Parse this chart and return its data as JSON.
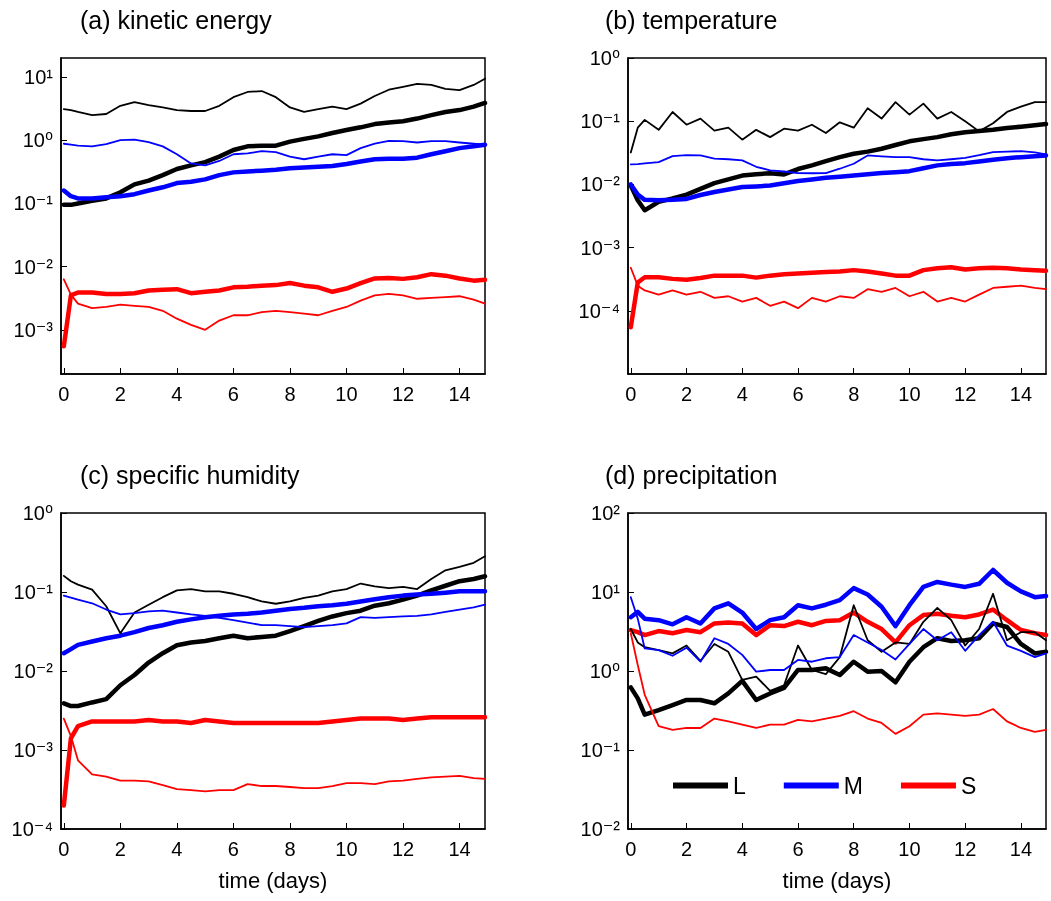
{
  "chart_data": [
    {
      "type": "line",
      "title": "(a) kinetic energy",
      "log": "y",
      "legend": false,
      "grid": false,
      "x": [
        0,
        0.25,
        0.5,
        1,
        1.5,
        2,
        2.5,
        3,
        3.5,
        4,
        4.5,
        5,
        5.5,
        6,
        6.5,
        7,
        7.5,
        8,
        8.5,
        9,
        9.5,
        10,
        10.5,
        11,
        11.5,
        12,
        12.5,
        13,
        13.5,
        14,
        14.5,
        14.9
      ],
      "xlim": [
        -0.1,
        14.9
      ],
      "xticks": [
        0,
        2,
        4,
        6,
        8,
        10,
        12,
        14
      ],
      "ylim": [
        0.0002,
        20
      ],
      "yticks": [
        {
          "value": 0.001,
          "label": "10⁻³"
        },
        {
          "value": 0.01,
          "label": "10⁻²"
        },
        {
          "value": 0.1,
          "label": "10⁻¹"
        },
        {
          "value": 1,
          "label": "10⁰"
        },
        {
          "value": 10,
          "label": "10¹"
        }
      ],
      "series": [
        {
          "color": "#000000",
          "values": [
            0.095,
            0.095,
            0.1,
            0.11,
            0.12,
            0.15,
            0.2,
            0.23,
            0.28,
            0.35,
            0.4,
            0.45,
            0.55,
            0.7,
            0.8,
            0.82,
            0.82,
            0.95,
            1.05,
            1.15,
            1.3,
            1.45,
            1.6,
            1.8,
            1.9,
            2.0,
            2.2,
            2.5,
            2.8,
            3.0,
            3.4,
            3.9
          ]
        },
        {
          "color": "#0000ff",
          "values": [
            0.16,
            0.13,
            0.12,
            0.12,
            0.125,
            0.13,
            0.14,
            0.16,
            0.18,
            0.21,
            0.22,
            0.24,
            0.28,
            0.31,
            0.32,
            0.33,
            0.34,
            0.36,
            0.37,
            0.38,
            0.39,
            0.42,
            0.46,
            0.5,
            0.51,
            0.51,
            0.53,
            0.6,
            0.67,
            0.75,
            0.8,
            0.85
          ]
        },
        {
          "color": "#ff0000",
          "values": [
            0.00055,
            0.0035,
            0.0039,
            0.0039,
            0.0037,
            0.0037,
            0.0038,
            0.0042,
            0.0043,
            0.0044,
            0.0038,
            0.004,
            0.0042,
            0.0047,
            0.0048,
            0.005,
            0.0051,
            0.0055,
            0.005,
            0.0047,
            0.004,
            0.0045,
            0.0055,
            0.0065,
            0.0066,
            0.0064,
            0.0068,
            0.0076,
            0.0072,
            0.0065,
            0.006,
            0.0062
          ]
        },
        {
          "color": "#000000",
          "values": [
            3.1,
            3.0,
            2.8,
            2.5,
            2.6,
            3.5,
            4.0,
            3.6,
            3.3,
            3.0,
            2.9,
            2.9,
            3.5,
            4.8,
            5.8,
            6.0,
            4.8,
            3.3,
            2.8,
            3.1,
            3.4,
            3.1,
            3.8,
            5.0,
            6.3,
            7.0,
            7.8,
            7.5,
            6.5,
            6.2,
            7.5,
            9.4
          ]
        },
        {
          "color": "#0000ff",
          "values": [
            0.88,
            0.85,
            0.82,
            0.8,
            0.87,
            1.0,
            1.02,
            0.93,
            0.8,
            0.6,
            0.43,
            0.4,
            0.47,
            0.6,
            0.62,
            0.67,
            0.65,
            0.55,
            0.5,
            0.55,
            0.6,
            0.58,
            0.75,
            0.88,
            0.98,
            0.97,
            0.92,
            0.97,
            0.97,
            0.92,
            0.88,
            0.85
          ]
        },
        {
          "color": "#ff0000",
          "values": [
            0.0063,
            0.0036,
            0.0026,
            0.0022,
            0.0023,
            0.0025,
            0.0024,
            0.0023,
            0.002,
            0.0015,
            0.0012,
            0.001,
            0.0014,
            0.0017,
            0.0017,
            0.0019,
            0.002,
            0.0019,
            0.0018,
            0.0017,
            0.002,
            0.0023,
            0.0029,
            0.0035,
            0.0037,
            0.0035,
            0.0031,
            0.0032,
            0.0033,
            0.0034,
            0.003,
            0.0026
          ]
        }
      ]
    },
    {
      "type": "line",
      "title": "(b) temperature",
      "log": "y",
      "legend": false,
      "grid": false,
      "x": [
        0,
        0.25,
        0.5,
        1,
        1.5,
        2,
        2.5,
        3,
        3.5,
        4,
        4.5,
        5,
        5.5,
        6,
        6.5,
        7,
        7.5,
        8,
        8.5,
        9,
        9.5,
        10,
        10.5,
        11,
        11.5,
        12,
        12.5,
        13,
        13.5,
        14,
        14.5,
        14.9
      ],
      "xlim": [
        -0.1,
        14.9
      ],
      "xticks": [
        0,
        2,
        4,
        6,
        8,
        10,
        12,
        14
      ],
      "ylim": [
        1e-05,
        1
      ],
      "yticks": [
        {
          "value": 0.0001,
          "label": "10⁻⁴"
        },
        {
          "value": 0.001,
          "label": "10⁻³"
        },
        {
          "value": 0.01,
          "label": "10⁻²"
        },
        {
          "value": 0.1,
          "label": "10⁻¹"
        },
        {
          "value": 1,
          "label": "10⁰"
        }
      ],
      "series": [
        {
          "color": "#000000",
          "values": [
            0.0096,
            0.0056,
            0.0039,
            0.0053,
            0.006,
            0.0069,
            0.0085,
            0.0105,
            0.012,
            0.0138,
            0.0145,
            0.015,
            0.0144,
            0.0175,
            0.02,
            0.0233,
            0.027,
            0.0305,
            0.033,
            0.0366,
            0.042,
            0.048,
            0.052,
            0.056,
            0.062,
            0.067,
            0.07,
            0.073,
            0.078,
            0.082,
            0.086,
            0.09
          ]
        },
        {
          "color": "#0000ff",
          "values": [
            0.01,
            0.0069,
            0.0057,
            0.0056,
            0.0057,
            0.0059,
            0.0068,
            0.0076,
            0.0083,
            0.0091,
            0.0093,
            0.0096,
            0.0104,
            0.0113,
            0.012,
            0.0127,
            0.0132,
            0.0138,
            0.0145,
            0.0151,
            0.0156,
            0.0162,
            0.018,
            0.02,
            0.021,
            0.0217,
            0.023,
            0.0245,
            0.026,
            0.027,
            0.028,
            0.0287
          ]
        },
        {
          "color": "#ff0000",
          "values": [
            5.5e-05,
            0.00028,
            0.00034,
            0.00034,
            0.00032,
            0.00031,
            0.00033,
            0.00036,
            0.00036,
            0.00036,
            0.000335,
            0.00036,
            0.00038,
            0.00039,
            0.0004,
            0.00041,
            0.00042,
            0.00044,
            0.00042,
            0.00039,
            0.00036,
            0.00036,
            0.00044,
            0.00047,
            0.00049,
            0.00045,
            0.00047,
            0.00048,
            0.00047,
            0.00045,
            0.00044,
            0.00043
          ]
        },
        {
          "color": "#000000",
          "values": [
            0.032,
            0.079,
            0.105,
            0.073,
            0.14,
            0.088,
            0.11,
            0.071,
            0.079,
            0.051,
            0.073,
            0.056,
            0.076,
            0.071,
            0.088,
            0.065,
            0.096,
            0.079,
            0.16,
            0.11,
            0.2,
            0.127,
            0.19,
            0.11,
            0.14,
            0.1,
            0.069,
            0.093,
            0.14,
            0.17,
            0.2,
            0.2
          ]
        },
        {
          "color": "#0000ff",
          "values": [
            0.0207,
            0.021,
            0.0215,
            0.0225,
            0.028,
            0.029,
            0.0287,
            0.0255,
            0.025,
            0.024,
            0.019,
            0.0167,
            0.016,
            0.0151,
            0.015,
            0.0151,
            0.0177,
            0.0212,
            0.0287,
            0.0277,
            0.027,
            0.027,
            0.025,
            0.024,
            0.025,
            0.0263,
            0.029,
            0.0324,
            0.033,
            0.0336,
            0.032,
            0.0298
          ]
        },
        {
          "color": "#ff0000",
          "values": [
            0.00048,
            0.00025,
            0.00021,
            0.00018,
            0.00021,
            0.00018,
            0.0002,
            0.00016,
            0.00017,
            0.00014,
            0.00016,
            0.00012,
            0.00014,
            0.00011,
            0.00016,
            0.00014,
            0.00017,
            0.00016,
            0.00022,
            0.0002,
            0.00023,
            0.00017,
            0.0002,
            0.00014,
            0.00016,
            0.00014,
            0.00018,
            0.00023,
            0.00024,
            0.00025,
            0.00023,
            0.00022
          ]
        }
      ]
    },
    {
      "type": "line",
      "title": "(c) specific humidity",
      "xlabel": "time (days)",
      "log": "y",
      "legend": false,
      "grid": false,
      "x": [
        0,
        0.25,
        0.5,
        1,
        1.5,
        2,
        2.5,
        3,
        3.5,
        4,
        4.5,
        5,
        5.5,
        6,
        6.5,
        7,
        7.5,
        8,
        8.5,
        9,
        9.5,
        10,
        10.5,
        11,
        11.5,
        12,
        12.5,
        13,
        13.5,
        14,
        14.5,
        14.9
      ],
      "xlim": [
        -0.1,
        14.9
      ],
      "xticks": [
        0,
        2,
        4,
        6,
        8,
        10,
        12,
        14
      ],
      "ylim": [
        0.0001,
        1
      ],
      "yticks": [
        {
          "value": 0.0001,
          "label": "10⁻⁴"
        },
        {
          "value": 0.001,
          "label": "10⁻³"
        },
        {
          "value": 0.01,
          "label": "10⁻²"
        },
        {
          "value": 0.1,
          "label": "10⁻¹"
        },
        {
          "value": 1,
          "label": "10⁰"
        }
      ],
      "series": [
        {
          "color": "#000000",
          "values": [
            0.0039,
            0.0036,
            0.0036,
            0.004,
            0.0044,
            0.0066,
            0.0089,
            0.0128,
            0.0168,
            0.0212,
            0.023,
            0.024,
            0.026,
            0.028,
            0.026,
            0.027,
            0.028,
            0.032,
            0.037,
            0.043,
            0.049,
            0.054,
            0.058,
            0.067,
            0.072,
            0.08,
            0.09,
            0.105,
            0.12,
            0.137,
            0.146,
            0.158
          ]
        },
        {
          "color": "#0000ff",
          "values": [
            0.0168,
            0.0189,
            0.0214,
            0.0236,
            0.026,
            0.028,
            0.031,
            0.035,
            0.038,
            0.042,
            0.045,
            0.048,
            0.05,
            0.052,
            0.053,
            0.055,
            0.058,
            0.061,
            0.063,
            0.066,
            0.068,
            0.071,
            0.076,
            0.081,
            0.086,
            0.09,
            0.093,
            0.095,
            0.098,
            0.102,
            0.102,
            0.102
          ]
        },
        {
          "color": "#ff0000",
          "values": [
            0.000198,
            0.0014,
            0.002,
            0.0023,
            0.0023,
            0.0023,
            0.0023,
            0.0024,
            0.0023,
            0.0023,
            0.0022,
            0.0024,
            0.0023,
            0.0022,
            0.0022,
            0.0022,
            0.0022,
            0.0022,
            0.0022,
            0.0022,
            0.0023,
            0.0024,
            0.0025,
            0.0025,
            0.0025,
            0.0024,
            0.0025,
            0.0026,
            0.0026,
            0.0026,
            0.0026,
            0.0026
          ]
        },
        {
          "color": "#000000",
          "values": [
            0.16,
            0.137,
            0.124,
            0.107,
            0.066,
            0.03,
            0.055,
            0.069,
            0.086,
            0.105,
            0.109,
            0.102,
            0.102,
            0.095,
            0.086,
            0.076,
            0.071,
            0.076,
            0.084,
            0.09,
            0.102,
            0.109,
            0.128,
            0.118,
            0.112,
            0.116,
            0.109,
            0.146,
            0.188,
            0.208,
            0.234,
            0.284
          ]
        },
        {
          "color": "#0000ff",
          "values": [
            0.09,
            0.085,
            0.08,
            0.072,
            0.06,
            0.052,
            0.054,
            0.057,
            0.058,
            0.055,
            0.052,
            0.05,
            0.047,
            0.044,
            0.041,
            0.038,
            0.038,
            0.037,
            0.036,
            0.037,
            0.038,
            0.04,
            0.048,
            0.047,
            0.048,
            0.049,
            0.05,
            0.052,
            0.056,
            0.06,
            0.064,
            0.069
          ]
        },
        {
          "color": "#ff0000",
          "values": [
            0.0025,
            0.0015,
            0.00074,
            0.00049,
            0.00046,
            0.00041,
            0.00041,
            0.0004,
            0.00036,
            0.00032,
            0.00031,
            0.0003,
            0.00031,
            0.00031,
            0.00037,
            0.00035,
            0.00035,
            0.00034,
            0.00033,
            0.00033,
            0.00035,
            0.00038,
            0.00038,
            0.00037,
            0.0004,
            0.00041,
            0.00043,
            0.00045,
            0.00046,
            0.00047,
            0.00044,
            0.00043
          ]
        }
      ]
    },
    {
      "type": "line",
      "title": "(d) precipitation",
      "xlabel": "time (days)",
      "log": "y",
      "legend": "bottom",
      "grid": false,
      "x": [
        0,
        0.25,
        0.5,
        1,
        1.5,
        2,
        2.5,
        3,
        3.5,
        4,
        4.5,
        5,
        5.5,
        6,
        6.5,
        7,
        7.5,
        8,
        8.5,
        9,
        9.5,
        10,
        10.5,
        11,
        11.5,
        12,
        12.5,
        13,
        13.5,
        14,
        14.5,
        14.9
      ],
      "xlim": [
        -0.1,
        14.9
      ],
      "xticks": [
        0,
        2,
        4,
        6,
        8,
        10,
        12,
        14
      ],
      "ylim": [
        0.01,
        100
      ],
      "yticks": [
        {
          "value": 0.01,
          "label": "10⁻²"
        },
        {
          "value": 0.1,
          "label": "10⁻¹"
        },
        {
          "value": 1,
          "label": "10⁰"
        },
        {
          "value": 10,
          "label": "10¹"
        },
        {
          "value": 100,
          "label": "10²"
        }
      ],
      "series": [
        {
          "name": "L",
          "color": "#000000",
          "values": [
            0.62,
            0.45,
            0.28,
            0.32,
            0.37,
            0.43,
            0.43,
            0.39,
            0.52,
            0.75,
            0.43,
            0.52,
            0.61,
            1.03,
            1.03,
            1.08,
            0.89,
            1.31,
            0.98,
            1.0,
            0.72,
            1.31,
            2.0,
            2.6,
            2.4,
            2.45,
            2.6,
            4.0,
            3.6,
            2.2,
            1.67,
            1.75
          ]
        },
        {
          "name": "M",
          "color": "#0000ff",
          "values": [
            4.8,
            5.6,
            4.6,
            4.4,
            3.9,
            4.8,
            4.0,
            6.2,
            7.2,
            5.5,
            3.4,
            4.4,
            4.8,
            6.8,
            6.2,
            6.9,
            7.9,
            11.2,
            9.3,
            6.5,
            3.7,
            6.8,
            11.6,
            13.4,
            12.4,
            11.6,
            12.7,
            19,
            13.1,
            10.2,
            8.6,
            8.9
          ]
        },
        {
          "name": "S",
          "color": "#ff0000",
          "values": [
            3.3,
            3.1,
            2.85,
            3.2,
            3.0,
            3.3,
            3.1,
            4.0,
            4.1,
            4.0,
            2.85,
            3.8,
            3.7,
            4.2,
            3.8,
            4.3,
            4.4,
            5.5,
            4.2,
            3.4,
            2.3,
            3.8,
            5.1,
            5.3,
            5.0,
            4.8,
            5.2,
            6.0,
            4.4,
            3.3,
            3.0,
            2.85
          ]
        },
        {
          "color": "#000000",
          "values": [
            3.4,
            2.3,
            2.0,
            1.84,
            1.67,
            2.1,
            1.34,
            2.2,
            1.75,
            0.77,
            0.85,
            0.56,
            0.66,
            2.1,
            1.03,
            0.91,
            1.5,
            6.8,
            2.45,
            1.75,
            2.3,
            2.2,
            4.2,
            6.3,
            4.4,
            2.1,
            3.4,
            9.5,
            2.45,
            3.1,
            3.1,
            2.45
          ]
        },
        {
          "color": "#0000ff",
          "values": [
            8.6,
            4.6,
            1.93,
            1.84,
            1.56,
            1.97,
            1.31,
            2.6,
            2.2,
            1.6,
            0.98,
            1.03,
            1.03,
            1.38,
            1.31,
            1.45,
            1.5,
            2.85,
            2.3,
            1.84,
            1.4,
            2.2,
            3.4,
            2.45,
            3.1,
            1.8,
            2.85,
            4.2,
            2.1,
            1.8,
            1.5,
            1.67
          ]
        },
        {
          "color": "#ff0000",
          "values": [
            3.0,
            1.19,
            0.5,
            0.2,
            0.18,
            0.19,
            0.19,
            0.25,
            0.23,
            0.21,
            0.19,
            0.21,
            0.21,
            0.24,
            0.23,
            0.25,
            0.27,
            0.31,
            0.25,
            0.22,
            0.16,
            0.2,
            0.28,
            0.29,
            0.28,
            0.27,
            0.28,
            0.33,
            0.23,
            0.19,
            0.17,
            0.18
          ]
        }
      ]
    }
  ]
}
